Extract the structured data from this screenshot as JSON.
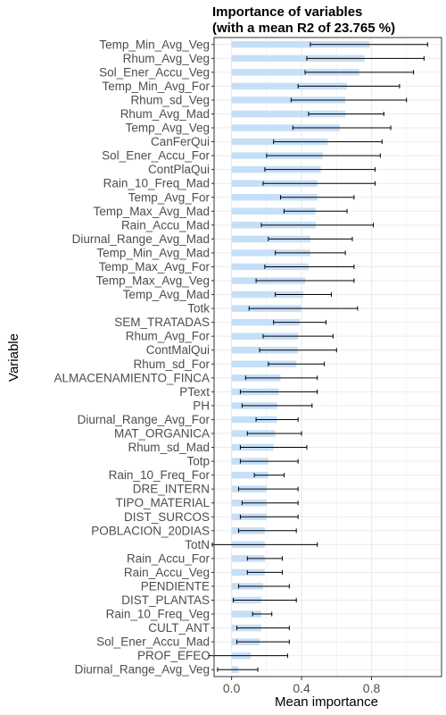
{
  "chart_data": {
    "type": "bar",
    "orientation": "horizontal",
    "title": "Importance of variables",
    "subtitle": "(with a mean R2 of 23.765 %)",
    "xlabel": "Mean importance",
    "ylabel": "Variable",
    "xlim": [
      -0.1,
      1.2
    ],
    "x_ticks": [
      0.0,
      0.4,
      0.8
    ],
    "x_tick_labels": [
      "0.0",
      "0.4",
      "0.8"
    ],
    "grid": true,
    "bar_color": "#c6dff8",
    "error_bar_color": "#000000",
    "panel_border_color": "#333333",
    "grid_color": "#ebebeb",
    "categories": [
      "Temp_Min_Avg_Veg",
      "Rhum_Avg_Veg",
      "Sol_Ener_Accu_Veg",
      "Temp_Min_Avg_For",
      "Rhum_sd_Veg",
      "Rhum_Avg_Mad",
      "Temp_Avg_Veg",
      "CanFerQui",
      "Sol_Ener_Accu_For",
      "ContPlaQui",
      "Rain_10_Freq_Mad",
      "Temp_Avg_For",
      "Temp_Max_Avg_Mad",
      "Rain_Accu_Mad",
      "Diurnal_Range_Avg_Mad",
      "Temp_Min_Avg_Mad",
      "Temp_Max_Avg_For",
      "Temp_Max_Avg_Veg",
      "Temp_Avg_Mad",
      "Totk",
      "SEM_TRATADAS",
      "Rhum_Avg_For",
      "ContMalQui",
      "Rhum_sd_For",
      "ALMACENAMIENTO_FINCA",
      "PText",
      "PH",
      "Diurnal_Range_Avg_For",
      "MAT_ORGANICA",
      "Rhum_sd_Mad",
      "Totp",
      "Rain_10_Freq_For",
      "DRE_INTERN",
      "TIPO_MATERIAL",
      "DIST_SURCOS",
      "POBLACION_20DIAS",
      "TotN",
      "Rain_Accu_For",
      "Rain_Accu_Veg",
      "PENDIENTE",
      "DIST_PLANTAS",
      "Rain_10_Freq_Veg",
      "CULT_ANT",
      "Sol_Ener_Accu_Mad",
      "PROF_EFEC",
      "Diurnal_Range_Avg_Veg"
    ],
    "values": [
      0.79,
      0.76,
      0.73,
      0.66,
      0.65,
      0.65,
      0.62,
      0.55,
      0.52,
      0.51,
      0.49,
      0.49,
      0.48,
      0.48,
      0.45,
      0.45,
      0.44,
      0.42,
      0.41,
      0.4,
      0.39,
      0.38,
      0.38,
      0.37,
      0.28,
      0.27,
      0.26,
      0.26,
      0.25,
      0.24,
      0.21,
      0.21,
      0.2,
      0.2,
      0.2,
      0.19,
      0.19,
      0.19,
      0.19,
      0.18,
      0.17,
      0.17,
      0.17,
      0.16,
      0.11,
      0.04
    ],
    "error_low": [
      0.45,
      0.43,
      0.42,
      0.38,
      0.34,
      0.44,
      0.35,
      0.24,
      0.2,
      0.19,
      0.18,
      0.28,
      0.3,
      0.17,
      0.21,
      0.25,
      0.19,
      0.14,
      0.25,
      0.1,
      0.24,
      0.18,
      0.16,
      0.21,
      0.08,
      0.05,
      0.06,
      0.14,
      0.09,
      0.05,
      0.05,
      0.13,
      0.04,
      0.06,
      0.05,
      0.04,
      -0.11,
      0.09,
      0.09,
      0.04,
      0.01,
      0.12,
      0.03,
      0.03,
      -0.13,
      -0.08
    ],
    "error_high": [
      1.12,
      1.1,
      1.04,
      0.96,
      1.0,
      0.87,
      0.91,
      0.86,
      0.85,
      0.82,
      0.82,
      0.7,
      0.66,
      0.81,
      0.69,
      0.65,
      0.7,
      0.7,
      0.57,
      0.72,
      0.54,
      0.58,
      0.6,
      0.53,
      0.49,
      0.49,
      0.46,
      0.38,
      0.4,
      0.43,
      0.38,
      0.3,
      0.38,
      0.38,
      0.38,
      0.37,
      0.49,
      0.29,
      0.29,
      0.33,
      0.37,
      0.23,
      0.33,
      0.33,
      0.32,
      0.15
    ]
  }
}
